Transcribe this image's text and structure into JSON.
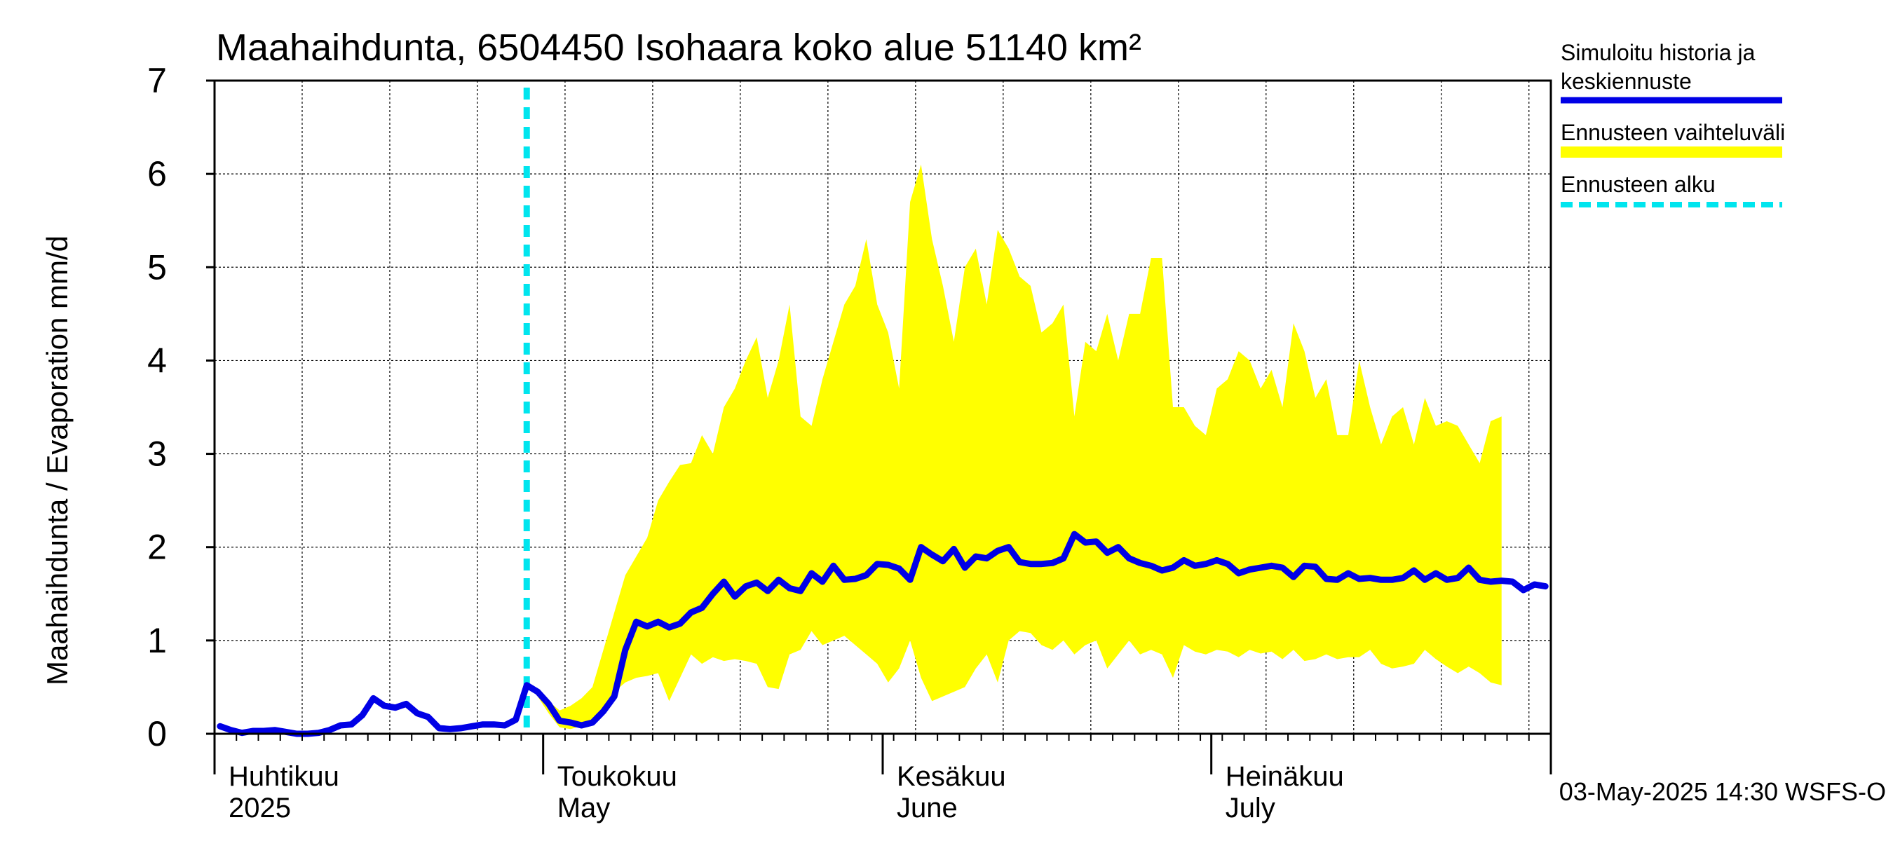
{
  "chart_data": {
    "type": "area",
    "title": "Maahaihdunta, 6504450 Isohaara koko alue 51140 km²",
    "ylabel": "Maahaihdunta / Evaporation   mm/d",
    "ylim": [
      0,
      7
    ],
    "yticks": [
      0,
      1,
      2,
      3,
      4,
      5,
      6,
      7
    ],
    "x_start": "2025-04-01",
    "x_end": "2025-07-31",
    "forecast_start": "2025-04-29",
    "grid": true,
    "month_labels": [
      {
        "date": "2025-04-01",
        "fi": "Huhtikuu",
        "en": "2025"
      },
      {
        "date": "2025-05-01",
        "fi": "Toukokuu",
        "en": "May"
      },
      {
        "date": "2025-06-01",
        "fi": "Kesäkuu",
        "en": "June"
      },
      {
        "date": "2025-07-01",
        "fi": "Heinäkuu",
        "en": "July"
      }
    ],
    "legend": {
      "placement": "right",
      "entries": [
        {
          "label_line1": "Simuloitu historia ja",
          "label_line2": "keskiennuste",
          "color": "#0000e6",
          "style": "solid"
        },
        {
          "label_line1": "Ennusteen vaihteluväli",
          "label_line2": "",
          "color": "#ffff00",
          "style": "band"
        },
        {
          "label_line1": "Ennusteen alku",
          "label_line2": "",
          "color": "#00e5ee",
          "style": "dashed"
        }
      ]
    },
    "footer": "03-May-2025 14:30 WSFS-O",
    "series": [
      {
        "name": "Simuloitu historia ja keskiennuste",
        "color": "#0000e6",
        "start": "2025-04-01",
        "values": [
          0.08,
          0.04,
          0.01,
          0.03,
          0.03,
          0.04,
          0.02,
          0.0,
          0.0,
          0.01,
          0.04,
          0.09,
          0.1,
          0.2,
          0.38,
          0.3,
          0.28,
          0.32,
          0.22,
          0.18,
          0.06,
          0.05,
          0.06,
          0.08,
          0.1,
          0.1,
          0.09,
          0.15,
          0.52,
          0.45,
          0.32,
          0.14,
          0.12,
          0.09,
          0.12,
          0.24,
          0.4,
          0.9,
          1.2,
          1.15,
          1.2,
          1.14,
          1.18,
          1.3,
          1.35,
          1.5,
          1.63,
          1.47,
          1.58,
          1.62,
          1.53,
          1.65,
          1.56,
          1.53,
          1.72,
          1.63,
          1.8,
          1.65,
          1.66,
          1.7,
          1.82,
          1.81,
          1.77,
          1.65,
          2.0,
          1.92,
          1.85,
          1.98,
          1.78,
          1.9,
          1.88,
          1.96,
          2.0,
          1.84,
          1.82,
          1.82,
          1.83,
          1.88,
          2.14,
          2.05,
          2.06,
          1.94,
          2.0,
          1.88,
          1.83,
          1.8,
          1.75,
          1.78,
          1.86,
          1.8,
          1.82,
          1.86,
          1.82,
          1.72,
          1.76,
          1.78,
          1.8,
          1.78,
          1.68,
          1.8,
          1.79,
          1.66,
          1.65,
          1.72,
          1.66,
          1.67,
          1.65,
          1.65,
          1.67,
          1.75,
          1.65,
          1.72,
          1.65,
          1.67,
          1.78,
          1.65,
          1.63,
          1.64,
          1.63,
          1.54,
          1.6,
          1.58
        ]
      },
      {
        "name": "Ennusteen vaihteluväli (yläraja)",
        "start": "2025-04-29",
        "values": [
          0.52,
          0.45,
          0.35,
          0.25,
          0.3,
          0.38,
          0.5,
          0.9,
          1.3,
          1.7,
          1.9,
          2.1,
          2.5,
          2.7,
          2.88,
          2.9,
          3.2,
          3.0,
          3.5,
          3.7,
          4.0,
          4.25,
          3.6,
          4.0,
          4.6,
          3.4,
          3.3,
          3.8,
          4.2,
          4.6,
          4.8,
          5.3,
          4.6,
          4.3,
          3.7,
          5.7,
          6.1,
          5.3,
          4.8,
          4.2,
          5.0,
          5.2,
          4.6,
          5.4,
          5.2,
          4.9,
          4.8,
          4.3,
          4.4,
          4.6,
          3.4,
          4.2,
          4.1,
          4.5,
          4.0,
          4.5,
          4.5,
          5.1,
          5.1,
          3.5,
          3.5,
          3.3,
          3.2,
          3.7,
          3.8,
          4.1,
          4.0,
          3.7,
          3.9,
          3.5,
          4.4,
          4.1,
          3.6,
          3.8,
          3.2,
          3.2,
          4.0,
          3.5,
          3.1,
          3.4,
          3.5,
          3.1,
          3.6,
          3.3,
          3.35,
          3.3,
          3.1,
          2.9,
          3.35,
          3.4
        ]
      },
      {
        "name": "Ennusteen vaihteluväli (alaraja)",
        "start": "2025-04-29",
        "values": [
          0.52,
          0.4,
          0.22,
          0.07,
          0.05,
          0.08,
          0.12,
          0.2,
          0.45,
          0.55,
          0.6,
          0.62,
          0.65,
          0.35,
          0.6,
          0.85,
          0.75,
          0.82,
          0.78,
          0.8,
          0.78,
          0.75,
          0.5,
          0.48,
          0.85,
          0.9,
          1.1,
          0.95,
          1.0,
          1.05,
          0.95,
          0.85,
          0.75,
          0.55,
          0.7,
          1.0,
          0.6,
          0.35,
          0.4,
          0.45,
          0.5,
          0.7,
          0.85,
          0.55,
          1.0,
          1.1,
          1.08,
          0.95,
          0.9,
          1.0,
          0.85,
          0.95,
          1.0,
          0.7,
          0.85,
          1.0,
          0.85,
          0.9,
          0.85,
          0.6,
          0.95,
          0.88,
          0.85,
          0.9,
          0.88,
          0.82,
          0.9,
          0.86,
          0.88,
          0.8,
          0.9,
          0.78,
          0.8,
          0.85,
          0.8,
          0.82,
          0.82,
          0.9,
          0.75,
          0.7,
          0.72,
          0.75,
          0.9,
          0.8,
          0.72,
          0.65,
          0.72,
          0.65,
          0.55,
          0.52
        ]
      }
    ]
  }
}
